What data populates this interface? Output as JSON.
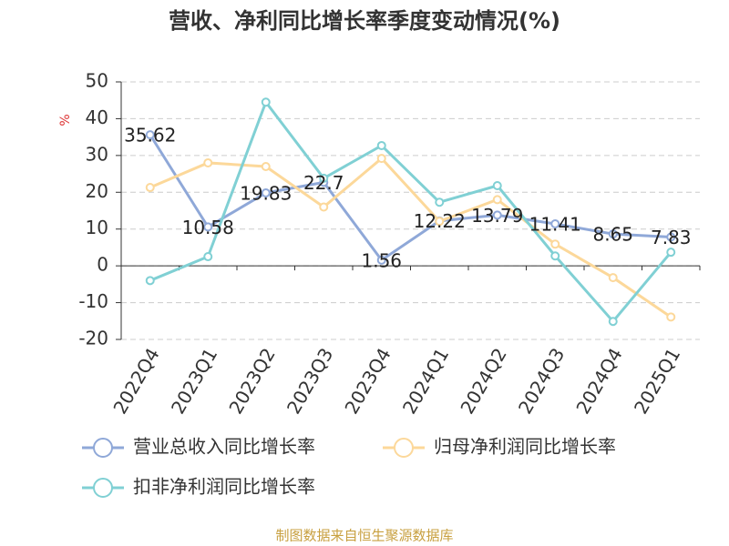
{
  "chart_data": {
    "type": "line",
    "title": "营收、净利同比增长率季度变动情况(%)",
    "y_label": "%",
    "source": "制图数据来自恒生聚源数据库",
    "categories": [
      "2022Q4",
      "2023Q1",
      "2023Q2",
      "2023Q3",
      "2023Q4",
      "2024Q1",
      "2024Q2",
      "2024Q3",
      "2024Q4",
      "2025Q1"
    ],
    "series": [
      {
        "name": "营业总收入同比增长率",
        "color": "#8fa8d8",
        "values": [
          35.62,
          10.58,
          19.83,
          22.7,
          1.56,
          12.22,
          13.79,
          11.41,
          8.65,
          7.83
        ],
        "show_labels": true
      },
      {
        "name": "归母净利润同比增长率",
        "color": "#fcd89a",
        "values": [
          21.3,
          28,
          27,
          16,
          29.2,
          12.1,
          18,
          5.9,
          -3.2,
          -13.9
        ]
      },
      {
        "name": "扣非净利润同比增长率",
        "color": "#80d0d4",
        "values": [
          -4,
          2.5,
          44.5,
          23.8,
          32.7,
          17.3,
          21.8,
          2.7,
          -15.1,
          3.7
        ]
      }
    ],
    "ylim": [
      -20,
      50
    ],
    "yticks": [
      -20,
      -10,
      0,
      10,
      20,
      30,
      40,
      50
    ],
    "grid": true
  }
}
